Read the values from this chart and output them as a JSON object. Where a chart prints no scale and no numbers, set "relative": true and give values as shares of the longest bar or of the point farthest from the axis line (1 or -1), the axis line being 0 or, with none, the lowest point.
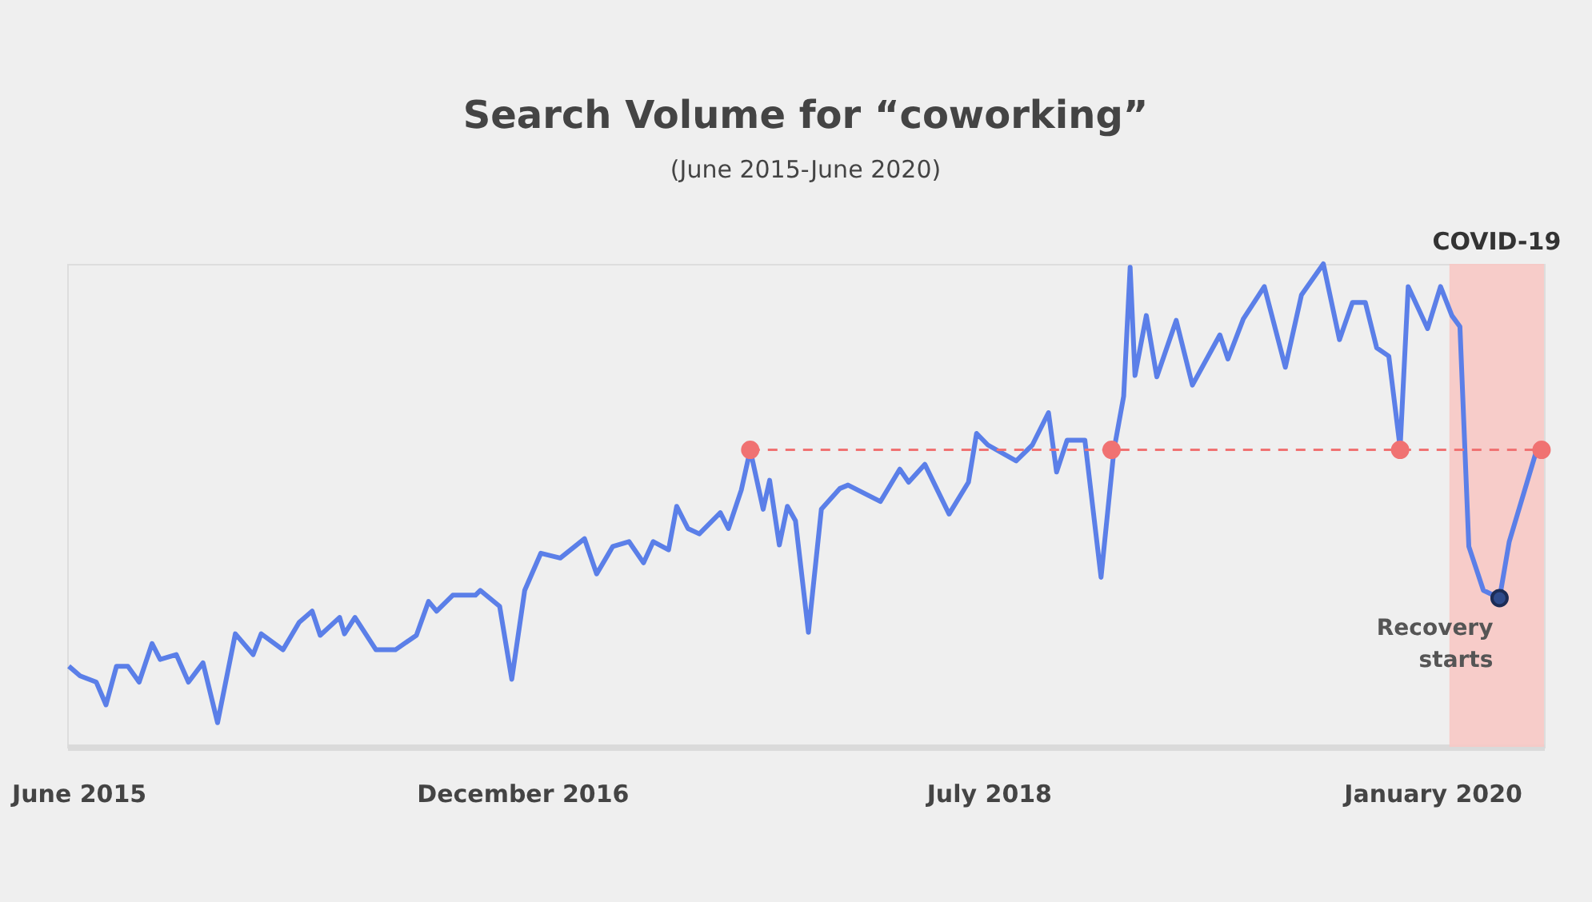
{
  "chart_data": {
    "type": "line",
    "title": "Search Volume for “coworking”",
    "subtitle": "(June 2015-June 2020)",
    "relative": true,
    "xlim": [
      "2015-06-01",
      "2020-06-01"
    ],
    "xticks": [
      {
        "value": "2015-06-15",
        "label": "June 2015"
      },
      {
        "value": "2016-12-15",
        "label": "December 2016"
      },
      {
        "value": "2018-07-15",
        "label": "July 2018"
      },
      {
        "value": "2020-01-15",
        "label": "January 2020"
      }
    ],
    "grid": false,
    "legend": false,
    "series": [
      {
        "type": "line",
        "color": "#5b7fe8",
        "marker": "none",
        "line_style": "solid",
        "x": [
          "2015-06-03",
          "2015-06-17",
          "2015-07-07",
          "2015-07-19",
          "2015-08-01",
          "2015-08-15",
          "2015-08-29",
          "2015-09-14",
          "2015-09-24",
          "2015-10-14",
          "2015-10-29",
          "2015-11-16",
          "2015-12-04",
          "2015-12-26",
          "2016-01-17",
          "2016-01-27",
          "2016-02-23",
          "2016-03-14",
          "2016-03-30",
          "2016-04-09",
          "2016-05-03",
          "2016-05-09",
          "2016-05-22",
          "2016-06-17",
          "2016-07-11",
          "2016-08-06",
          "2016-08-21",
          "2016-08-31",
          "2016-09-20",
          "2016-10-18",
          "2016-10-24",
          "2016-11-17",
          "2016-12-02",
          "2016-12-18",
          "2017-01-07",
          "2017-01-31",
          "2017-03-02",
          "2017-03-17",
          "2017-04-06",
          "2017-04-26",
          "2017-05-14",
          "2017-05-26",
          "2017-06-14",
          "2017-06-24",
          "2017-07-08",
          "2017-07-22",
          "2017-08-17",
          "2017-08-27",
          "2017-09-12",
          "2017-09-23",
          "2017-10-09",
          "2017-10-17",
          "2017-10-29",
          "2017-11-08",
          "2017-11-18",
          "2017-12-04",
          "2017-12-20",
          "2018-01-12",
          "2018-01-22",
          "2018-03-03",
          "2018-03-27",
          "2018-04-07",
          "2018-04-27",
          "2018-05-27",
          "2018-06-20",
          "2018-06-30",
          "2018-07-14",
          "2018-08-18",
          "2018-09-07",
          "2018-09-27",
          "2018-10-07",
          "2018-10-20",
          "2018-11-11",
          "2018-12-01",
          "2018-12-17",
          "2018-12-29",
          "2019-01-06",
          "2019-01-12",
          "2019-01-26",
          "2019-02-08",
          "2019-03-04",
          "2019-03-24",
          "2019-04-27",
          "2019-05-07",
          "2019-05-26",
          "2019-06-21",
          "2019-07-17",
          "2019-08-06",
          "2019-09-02",
          "2019-09-22",
          "2019-10-08",
          "2019-10-24",
          "2019-11-07",
          "2019-11-22",
          "2019-12-06",
          "2019-12-16",
          "2020-01-09",
          "2020-01-25",
          "2020-02-08",
          "2020-02-18",
          "2020-02-29",
          "2020-03-18",
          "2020-04-07",
          "2020-04-19",
          "2020-05-23",
          "2020-05-29"
        ],
        "values": [
          0.167,
          0.147,
          0.134,
          0.087,
          0.167,
          0.167,
          0.134,
          0.214,
          0.181,
          0.191,
          0.134,
          0.174,
          0.05,
          0.234,
          0.191,
          0.234,
          0.201,
          0.258,
          0.281,
          0.231,
          0.268,
          0.234,
          0.268,
          0.201,
          0.201,
          0.231,
          0.301,
          0.281,
          0.314,
          0.314,
          0.324,
          0.291,
          0.14,
          0.324,
          0.401,
          0.391,
          0.431,
          0.358,
          0.415,
          0.425,
          0.381,
          0.425,
          0.408,
          0.498,
          0.452,
          0.441,
          0.485,
          0.452,
          0.532,
          0.615,
          0.492,
          0.552,
          0.418,
          0.498,
          0.468,
          0.237,
          0.492,
          0.535,
          0.542,
          0.508,
          0.575,
          0.548,
          0.585,
          0.482,
          0.548,
          0.649,
          0.625,
          0.592,
          0.625,
          0.692,
          0.569,
          0.635,
          0.635,
          0.351,
          0.615,
          0.726,
          0.993,
          0.769,
          0.893,
          0.766,
          0.883,
          0.749,
          0.853,
          0.803,
          0.886,
          0.953,
          0.786,
          0.936,
          1.0,
          0.843,
          0.92,
          0.92,
          0.826,
          0.809,
          0.619,
          0.953,
          0.866,
          0.953,
          0.893,
          0.87,
          0.415,
          0.324,
          0.308,
          0.425,
          0.615,
          0.619
        ]
      },
      {
        "type": "line",
        "color": "#f07272",
        "marker": "circle",
        "line_style": "dashed",
        "x": [
          "2017-09-23",
          "2018-12-14",
          "2019-12-06",
          "2020-05-29"
        ],
        "values": [
          0.615,
          0.615,
          0.615,
          0.615
        ]
      },
      {
        "type": "scatter",
        "color": "#2e4a8a",
        "marker": "circle",
        "x": [
          "2020-04-07"
        ],
        "values": [
          0.308
        ]
      }
    ],
    "bands": [
      {
        "axis": "x",
        "from": "2020-02-05",
        "to": "2020-06-01",
        "label": "COVID-19",
        "color": "#f7c8c4"
      }
    ],
    "annotations": [
      {
        "text": "Recovery starts",
        "x": "2020-04-07",
        "y": 0.308
      }
    ]
  }
}
